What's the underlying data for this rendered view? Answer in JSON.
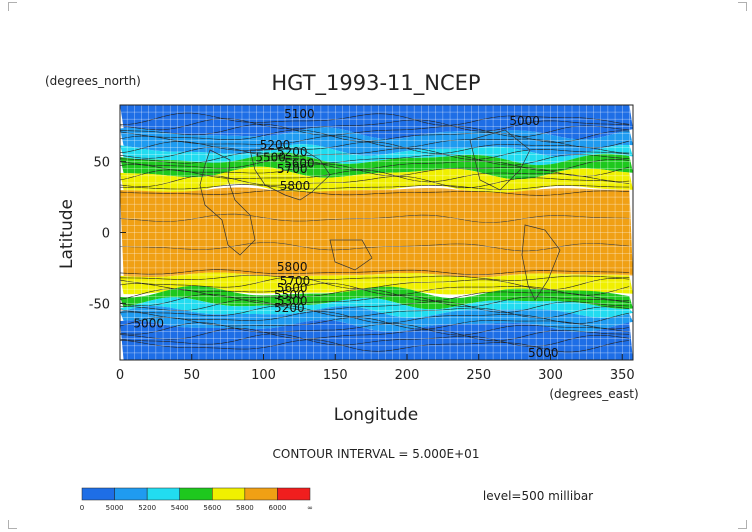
{
  "chart_data": {
    "type": "heatmap",
    "title": "HGT_1993-11_NCEP",
    "xlabel": "Longitude",
    "ylabel": "Latitude",
    "x_unit": "(degrees_east)",
    "y_unit": "(degrees_north)",
    "xlim": [
      0,
      357.5
    ],
    "ylim": [
      -90,
      90
    ],
    "x_ticks": [
      "0",
      "50",
      "100",
      "150",
      "200",
      "250",
      "300",
      "350"
    ],
    "y_ticks": [
      "50",
      "0",
      "-50"
    ],
    "grid": true,
    "contour_interval_text": "CONTOUR INTERVAL = 5.000E+01",
    "level_text": "level=500 millibar",
    "colorbar": {
      "labels": [
        "0",
        "5000",
        "5200",
        "5400",
        "5600",
        "5800",
        "6000",
        "∞"
      ],
      "bins": [
        {
          "from": 0,
          "to": 5000,
          "color": "#1e6ee6"
        },
        {
          "from": 5000,
          "to": 5200,
          "color": "#1f9bf0"
        },
        {
          "from": 5200,
          "to": 5400,
          "color": "#22dcf0"
        },
        {
          "from": 5400,
          "to": 5600,
          "color": "#1ec81e"
        },
        {
          "from": 5600,
          "to": 5800,
          "color": "#f0f000"
        },
        {
          "from": 5800,
          "to": 6000,
          "color": "#f0a014"
        },
        {
          "from": 6000,
          "to": "inf",
          "color": "#f01e1e"
        }
      ]
    },
    "latitude_bands": [
      {
        "lat_from": 90,
        "lat_to": 70,
        "value_range": "<5000",
        "color": "#1e6ee6"
      },
      {
        "lat_from": 70,
        "lat_to": 58,
        "value_range": "5000-5200",
        "color": "#1f9bf0"
      },
      {
        "lat_from": 58,
        "lat_to": 52,
        "value_range": "5200-5400",
        "color": "#22dcf0"
      },
      {
        "lat_from": 52,
        "lat_to": 42,
        "value_range": "5400-5600",
        "color": "#1ec81e"
      },
      {
        "lat_from": 42,
        "lat_to": 30,
        "value_range": "5600-5800",
        "color": "#f0f000"
      },
      {
        "lat_from": 30,
        "lat_to": -30,
        "value_range": "5800-6000",
        "color": "#f0a014"
      },
      {
        "lat_from": -30,
        "lat_to": -42,
        "value_range": "5600-5800",
        "color": "#f0f000"
      },
      {
        "lat_from": -42,
        "lat_to": -50,
        "value_range": "5400-5600",
        "color": "#1ec81e"
      },
      {
        "lat_from": -50,
        "lat_to": -56,
        "value_range": "5200-5400",
        "color": "#22dcf0"
      },
      {
        "lat_from": -56,
        "lat_to": -66,
        "value_range": "5000-5200",
        "color": "#1f9bf0"
      },
      {
        "lat_from": -66,
        "lat_to": -90,
        "value_range": "<5000",
        "color": "#1e6ee6"
      }
    ],
    "contour_labels": [
      {
        "text": "5100",
        "lon": 125,
        "lat": 81
      },
      {
        "text": "5000",
        "lon": 282,
        "lat": 76
      },
      {
        "text": "5200",
        "lon": 108,
        "lat": 59
      },
      {
        "text": "5200",
        "lon": 120,
        "lat": 54
      },
      {
        "text": "5500",
        "lon": 105,
        "lat": 50
      },
      {
        "text": "5600",
        "lon": 125,
        "lat": 46
      },
      {
        "text": "5700",
        "lon": 120,
        "lat": 42
      },
      {
        "text": "5800",
        "lon": 122,
        "lat": 30
      },
      {
        "text": "5800",
        "lon": 120,
        "lat": -27
      },
      {
        "text": "5700",
        "lon": 122,
        "lat": -37
      },
      {
        "text": "5600",
        "lon": 120,
        "lat": -42
      },
      {
        "text": "5500",
        "lon": 118,
        "lat": -47
      },
      {
        "text": "5300",
        "lon": 120,
        "lat": -51
      },
      {
        "text": "5200",
        "lon": 118,
        "lat": -56
      },
      {
        "text": "5000",
        "lon": 20,
        "lat": -67
      },
      {
        "text": "5000",
        "lon": 295,
        "lat": -88
      }
    ]
  }
}
